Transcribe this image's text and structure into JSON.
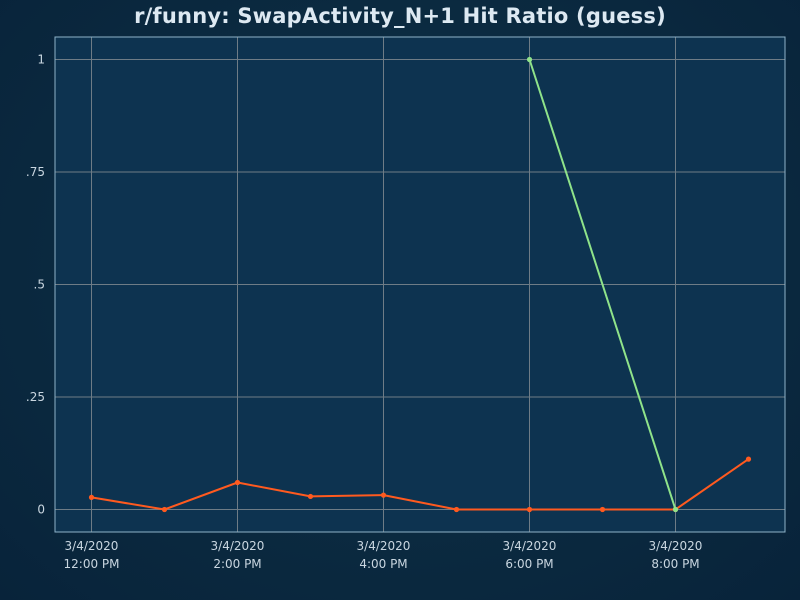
{
  "chart_data": {
    "type": "line",
    "title": "r/funny: SwapActivity_N+1 Hit Ratio (guess)",
    "xlabel": "",
    "ylabel": "",
    "x": [
      "2020-03-04 12:00",
      "2020-03-04 13:00",
      "2020-03-04 14:00",
      "2020-03-04 15:00",
      "2020-03-04 16:00",
      "2020-03-04 17:00",
      "2020-03-04 18:00",
      "2020-03-04 19:00",
      "2020-03-04 20:00",
      "2020-03-04 21:00"
    ],
    "x_ticks": [
      {
        "x": "2020-03-04 12:00",
        "date": "3/4/2020",
        "time": "12:00 PM"
      },
      {
        "x": "2020-03-04 14:00",
        "date": "3/4/2020",
        "time": "2:00 PM"
      },
      {
        "x": "2020-03-04 16:00",
        "date": "3/4/2020",
        "time": "4:00 PM"
      },
      {
        "x": "2020-03-04 18:00",
        "date": "3/4/2020",
        "time": "6:00 PM"
      },
      {
        "x": "2020-03-04 20:00",
        "date": "3/4/2020",
        "time": "8:00 PM"
      }
    ],
    "y_ticks": [
      {
        "value": 0,
        "label": "0"
      },
      {
        "value": 0.25,
        "label": ".25"
      },
      {
        "value": 0.5,
        "label": ".5"
      },
      {
        "value": 0.75,
        "label": ".75"
      },
      {
        "value": 1,
        "label": "1"
      }
    ],
    "xlim": [
      "2020-03-04 11:30",
      "2020-03-04 21:30"
    ],
    "ylim": [
      -0.05,
      1.05
    ],
    "grid": true,
    "series": [
      {
        "color": "#ff5a1f",
        "points": [
          {
            "x": "2020-03-04 12:00",
            "y": 0.027
          },
          {
            "x": "2020-03-04 13:00",
            "y": 0.0
          },
          {
            "x": "2020-03-04 14:00",
            "y": 0.06
          },
          {
            "x": "2020-03-04 15:00",
            "y": 0.029
          },
          {
            "x": "2020-03-04 16:00",
            "y": 0.032
          },
          {
            "x": "2020-03-04 17:00",
            "y": 0.0
          },
          {
            "x": "2020-03-04 18:00",
            "y": 0.0
          },
          {
            "x": "2020-03-04 19:00",
            "y": 0.0
          },
          {
            "x": "2020-03-04 20:00",
            "y": 0.0
          },
          {
            "x": "2020-03-04 21:00",
            "y": 0.112
          }
        ]
      },
      {
        "color": "#8fe38a",
        "points": [
          {
            "x": "2020-03-04 18:00",
            "y": 1.0
          },
          {
            "x": "2020-03-04 20:00",
            "y": 0.0
          }
        ]
      }
    ],
    "colors": {
      "plot_background": "#0d3350",
      "grid": "#6e7c86",
      "frame": "#8fb3c9",
      "text": "#c9d6e0"
    }
  }
}
